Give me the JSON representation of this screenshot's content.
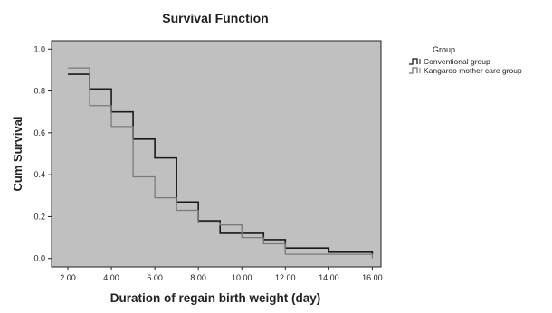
{
  "chart_data": {
    "type": "line",
    "step": true,
    "title": "Survival Function",
    "xlabel": "Duration of regain birth weight (day)",
    "ylabel": "Cum Survival",
    "xlim": [
      1.25,
      16.4
    ],
    "ylim": [
      -0.04,
      1.04
    ],
    "xticks": [
      2,
      4,
      6,
      8,
      10,
      12,
      14,
      16
    ],
    "xtick_labels": [
      "2.00",
      "4.00",
      "6.00",
      "8.00",
      "10.00",
      "12.00",
      "14.00",
      "16.00"
    ],
    "yticks": [
      0,
      0.2,
      0.4,
      0.6,
      0.8,
      1.0
    ],
    "ytick_labels": [
      "0.0",
      "0.2",
      "0.4",
      "0.6",
      "0.8",
      "1.0"
    ],
    "plot_background": "#c0c0c0",
    "grid": false,
    "legend_position": "right",
    "legend_title": "Group",
    "series": [
      {
        "name": "Conventional group",
        "color": "#1a1a1a",
        "points": [
          [
            2,
            0.88
          ],
          [
            3,
            0.81
          ],
          [
            4,
            0.7
          ],
          [
            5,
            0.57
          ],
          [
            6,
            0.48
          ],
          [
            7,
            0.27
          ],
          [
            8,
            0.18
          ],
          [
            9,
            0.12
          ],
          [
            11,
            0.09
          ],
          [
            12,
            0.05
          ],
          [
            14,
            0.03
          ],
          [
            16,
            0.02
          ]
        ],
        "end_x": 16
      },
      {
        "name": "Kangaroo mother care group",
        "color": "#7a7a7a",
        "points": [
          [
            2,
            0.91
          ],
          [
            3,
            0.73
          ],
          [
            4,
            0.63
          ],
          [
            5,
            0.39
          ],
          [
            6,
            0.29
          ],
          [
            7,
            0.23
          ],
          [
            8,
            0.17
          ],
          [
            9,
            0.16
          ],
          [
            10,
            0.1
          ],
          [
            11,
            0.07
          ],
          [
            12,
            0.02
          ],
          [
            16,
            0.01
          ]
        ],
        "end_x": 16,
        "end_drop_to": 0.0
      }
    ]
  }
}
